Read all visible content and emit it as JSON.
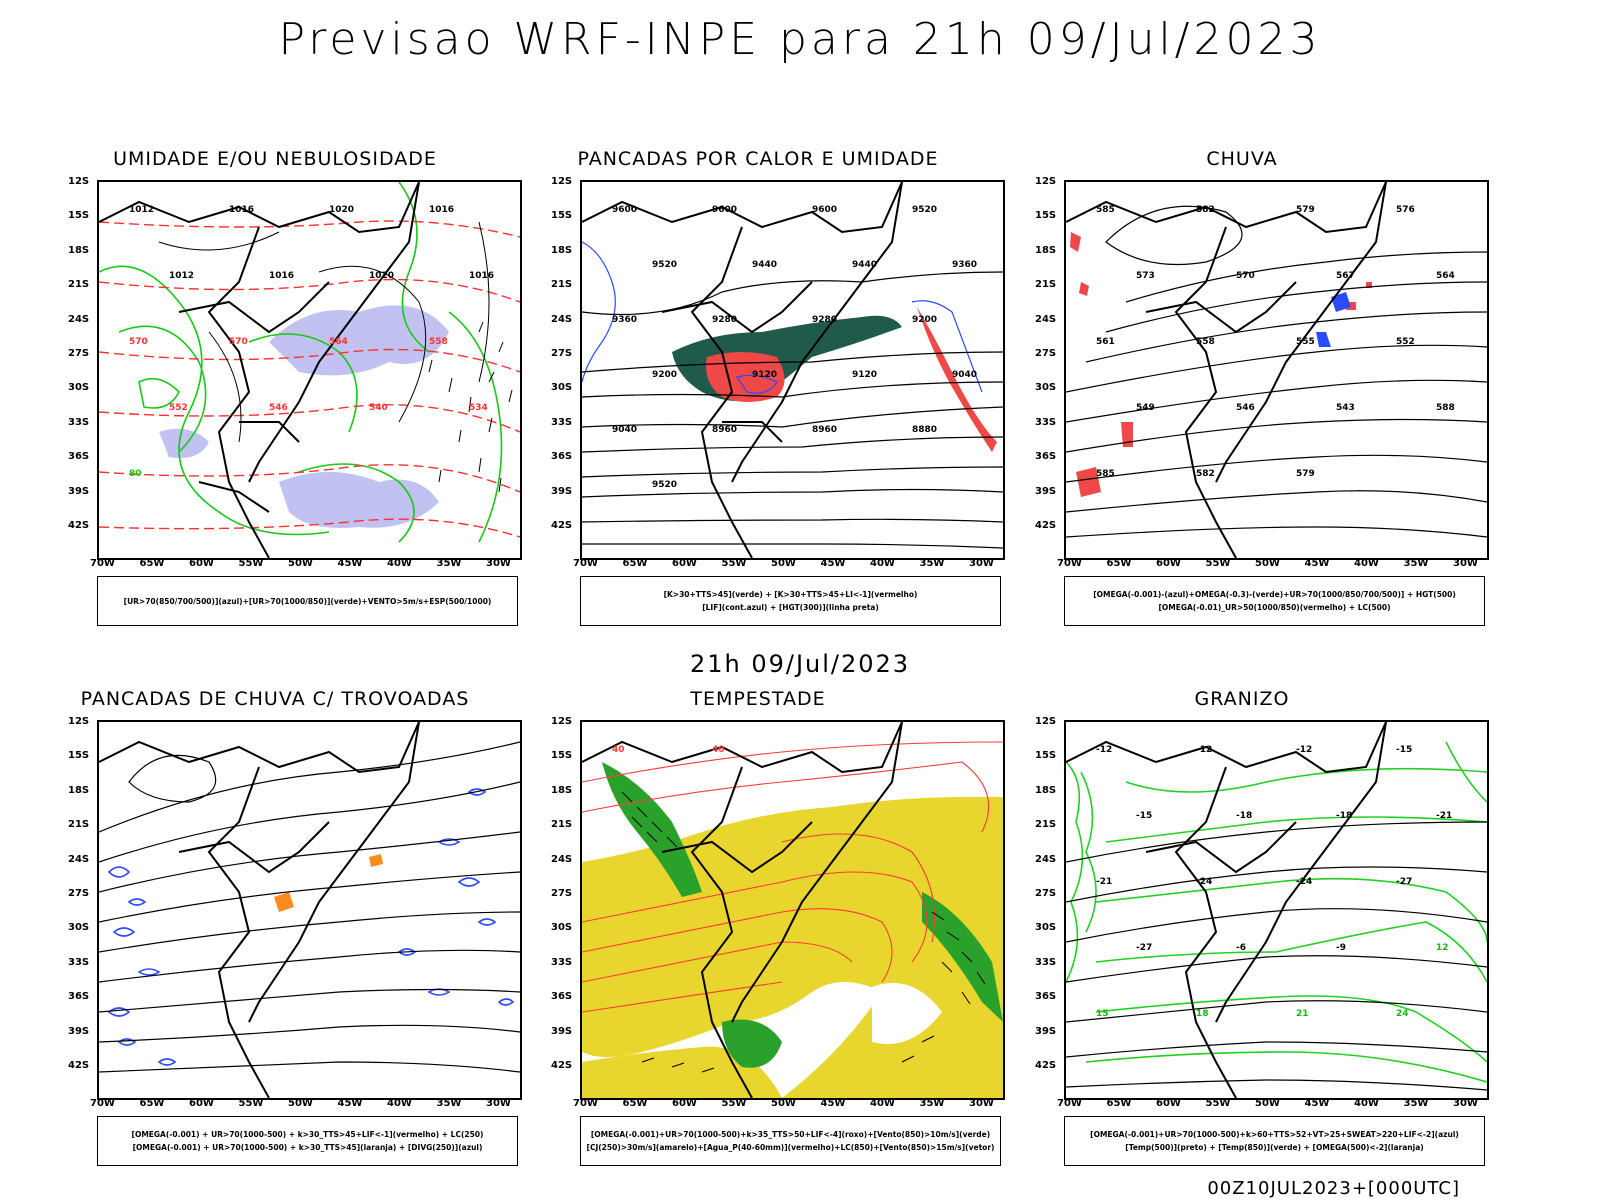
{
  "title": "Previsao WRF-INPE  para 21h 09/Jul/2023",
  "middle_date": "21h 09/Jul/2023",
  "footer": "00Z10JUL2023+[000UTC]",
  "lat_labels": [
    "12S",
    "15S",
    "18S",
    "21S",
    "24S",
    "27S",
    "30S",
    "33S",
    "36S",
    "39S",
    "42S"
  ],
  "lon_labels": [
    "70W",
    "65W",
    "60W",
    "55W",
    "50W",
    "45W",
    "40W",
    "35W",
    "30W"
  ],
  "panels": [
    {
      "title": "UMIDADE E/OU NEBULOSIDADE",
      "legend": [
        "[UR>70(850/700/500)](azul)+[UR>70(1000/850)](verde)+VENTO>5m/s+ESP(500/1000)"
      ],
      "contour_labels": [
        "1012",
        "1016",
        "1020",
        "1016",
        "1012",
        "1016",
        "1020",
        "1016",
        "570",
        "570",
        "564",
        "558",
        "552",
        "546",
        "540",
        "534",
        "80"
      ]
    },
    {
      "title": "PANCADAS POR CALOR E UMIDADE",
      "legend": [
        "[K>30+TTS>45](verde) + [K>30+TTS>45+LI<-1](vermelho)",
        "[LIF](cont.azul) + [HGT(300)](linha preta)"
      ],
      "contour_labels": [
        "9600",
        "9600",
        "9600",
        "9520",
        "9520",
        "9440",
        "9440",
        "9360",
        "9360",
        "9280",
        "9280",
        "9200",
        "9200",
        "9120",
        "9120",
        "9040",
        "9040",
        "8960",
        "8960",
        "8880",
        "9520"
      ]
    },
    {
      "title": "CHUVA",
      "legend": [
        "[OMEGA(-0.001)-(azul)+OMEGA(-0.3)-(verde)+UR>70(1000/850/700/500)] + HGT(500)",
        "[OMEGA(-0.01)_UR>50(1000/850)(vermelho) + LC(500)"
      ],
      "contour_labels": [
        "585",
        "582",
        "579",
        "576",
        "573",
        "570",
        "567",
        "564",
        "561",
        "558",
        "555",
        "552",
        "549",
        "546",
        "543",
        "588",
        "585",
        "582",
        "579"
      ]
    },
    {
      "title": "PANCADAS DE CHUVA C/ TROVOADAS",
      "legend": [
        "[OMEGA(-0.001) + UR>70(1000-500) + k>30_TTS>45+LIF<-1](vermelho) + LC(250)",
        "[OMEGA(-0.001) + UR>70(1000-500) + k>30_TTS>45](laranja) + [DIVG(250)](azul)"
      ],
      "contour_labels": []
    },
    {
      "title": "TEMPESTADE",
      "legend": [
        "[OMEGA(-0.001)+UR>70(1000-500)+k>35_TTS>50+LIF<-4](roxo)+[Vento(850)>10m/s](verde)",
        "[CJ(250)>30m/s](amarelo)+[Agua_P(40-60mm)](vermelho)+LC(850)+[Vento(850)>15m/s](vetor)"
      ],
      "contour_labels": [
        "40",
        "40"
      ]
    },
    {
      "title": "GRANIZO",
      "legend": [
        "[OMEGA(-0.001)+UR>70(1000-500)+k>60+TTS>52+VT>25+SWEAT>220+LIF<-2](azul)",
        "[Temp(500)](preto) + [Temp(850)](verde) + [OMEGA(500)<-2](laranja)"
      ],
      "contour_labels": [
        "-12",
        "-12",
        "-12",
        "-15",
        "-15",
        "-18",
        "-18",
        "-21",
        "-21",
        "-24",
        "-24",
        "-27",
        "-27",
        "-6",
        "-9",
        "12",
        "15",
        "18",
        "21",
        "24"
      ]
    }
  ]
}
